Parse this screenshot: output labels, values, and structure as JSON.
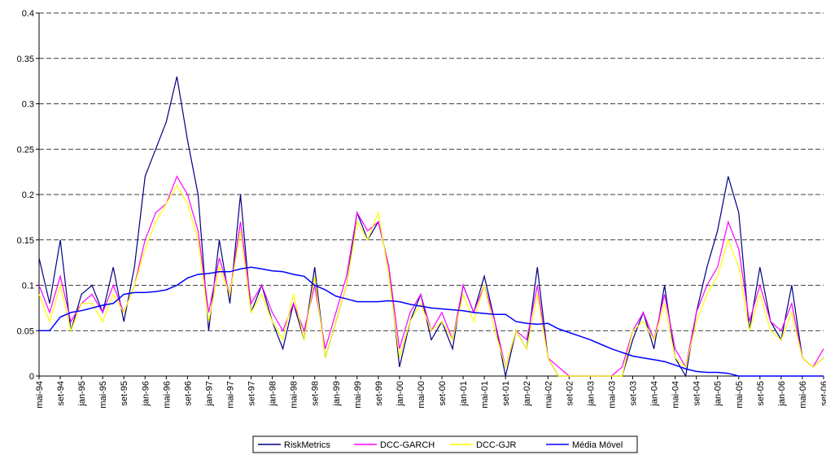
{
  "chart_data": {
    "type": "line",
    "categories": [
      "mai-94",
      null,
      "set-94",
      null,
      "jan-95",
      null,
      "mai-95",
      null,
      "set-95",
      null,
      "jan-96",
      null,
      "mai-96",
      null,
      "set-96",
      null,
      "jan-97",
      null,
      "mai-97",
      null,
      "set-97",
      null,
      "jan-98",
      null,
      "mai-98",
      null,
      "set-98",
      null,
      "jan-99",
      null,
      "mai-99",
      null,
      "set-99",
      null,
      "jan-00",
      null,
      "mai-00",
      null,
      "set-00",
      null,
      "jan-01",
      null,
      "mai-01",
      null,
      "set-01",
      null,
      "jan-02",
      null,
      "mai-02",
      null,
      "set-02",
      null,
      "jan-03",
      null,
      "mai-03",
      null,
      "set-03",
      null,
      "jan-04",
      null,
      "mai-04",
      null,
      "set-04",
      null,
      "jan-05",
      null,
      "mai-05",
      null,
      "set-05",
      null,
      "jan-06",
      null,
      "mai-06",
      null,
      "set-06"
    ],
    "series": [
      {
        "name": "RiskMetrics",
        "color": "#000080",
        "values": [
          0.13,
          0.08,
          0.15,
          0.05,
          0.09,
          0.1,
          0.07,
          0.12,
          0.06,
          0.12,
          0.22,
          0.25,
          0.28,
          0.33,
          0.26,
          0.2,
          0.05,
          0.15,
          0.08,
          0.2,
          0.07,
          0.1,
          0.06,
          0.03,
          0.08,
          0.04,
          0.12,
          0.02,
          0.06,
          0.1,
          0.18,
          0.15,
          0.17,
          0.12,
          0.01,
          0.06,
          0.09,
          0.04,
          0.06,
          0.03,
          0.1,
          0.07,
          0.11,
          0.06,
          0,
          0.05,
          0.03,
          0.12,
          0.02,
          0,
          0,
          0,
          0,
          0,
          0,
          0,
          0.04,
          0.07,
          0.03,
          0.1,
          0.02,
          0,
          0.07,
          0.12,
          0.16,
          0.22,
          0.18,
          0.05,
          0.12,
          0.06,
          0.04,
          0.1,
          0.02,
          0.01,
          0.02
        ]
      },
      {
        "name": "DCC-GARCH",
        "color": "#ff00ff",
        "values": [
          0.1,
          0.07,
          0.11,
          0.06,
          0.08,
          0.09,
          0.07,
          0.1,
          0.07,
          0.1,
          0.15,
          0.18,
          0.19,
          0.22,
          0.2,
          0.16,
          0.07,
          0.13,
          0.09,
          0.17,
          0.08,
          0.1,
          0.07,
          0.05,
          0.08,
          0.05,
          0.1,
          0.03,
          0.07,
          0.11,
          0.18,
          0.16,
          0.17,
          0.12,
          0.03,
          0.07,
          0.09,
          0.05,
          0.07,
          0.04,
          0.1,
          0.07,
          0.1,
          0.06,
          0.01,
          0.05,
          0.04,
          0.1,
          0.02,
          0.01,
          0,
          0,
          0,
          0,
          0,
          0.01,
          0.05,
          0.07,
          0.04,
          0.09,
          0.03,
          0.01,
          0.07,
          0.1,
          0.12,
          0.17,
          0.14,
          0.06,
          0.1,
          0.06,
          0.05,
          0.08,
          0.02,
          0.01,
          0.03
        ]
      },
      {
        "name": "DCC-GJR",
        "color": "#ffff00",
        "values": [
          0.09,
          0.06,
          0.1,
          0.05,
          0.08,
          0.08,
          0.06,
          0.09,
          0.07,
          0.1,
          0.14,
          0.17,
          0.19,
          0.21,
          0.19,
          0.15,
          0.06,
          0.12,
          0.09,
          0.16,
          0.07,
          0.09,
          0.06,
          0.04,
          0.09,
          0.04,
          0.11,
          0.02,
          0.06,
          0.1,
          0.17,
          0.15,
          0.18,
          0.11,
          0.02,
          0.06,
          0.08,
          0.05,
          0.06,
          0.04,
          0.09,
          0.06,
          0.1,
          0.05,
          0.01,
          0.05,
          0.03,
          0.09,
          0.02,
          0,
          0,
          0,
          0,
          0,
          0,
          0,
          0.05,
          0.06,
          0.04,
          0.08,
          0.02,
          0.01,
          0.06,
          0.09,
          0.11,
          0.15,
          0.12,
          0.05,
          0.09,
          0.05,
          0.04,
          0.07,
          0.02,
          0.01,
          0.02
        ]
      },
      {
        "name": "Média Móvel",
        "color": "#0000ff",
        "values": [
          0.05,
          0.05,
          0.065,
          0.07,
          0.072,
          0.075,
          0.078,
          0.08,
          0.09,
          0.092,
          0.092,
          0.093,
          0.095,
          0.1,
          0.108,
          0.112,
          0.113,
          0.115,
          0.115,
          0.118,
          0.12,
          0.118,
          0.116,
          0.115,
          0.112,
          0.11,
          0.1,
          0.095,
          0.088,
          0.085,
          0.082,
          0.082,
          0.082,
          0.083,
          0.082,
          0.079,
          0.077,
          0.075,
          0.074,
          0.073,
          0.072,
          0.07,
          0.069,
          0.068,
          0.068,
          0.06,
          0.058,
          0.057,
          0.058,
          0.052,
          0.048,
          0.044,
          0.04,
          0.035,
          0.03,
          0.026,
          0.022,
          0.02,
          0.018,
          0.016,
          0.012,
          0.008,
          0.005,
          0.004,
          0.004,
          0.003,
          0,
          0,
          0,
          0,
          0,
          0,
          0,
          0,
          0
        ]
      }
    ],
    "ylim": [
      0,
      0.4
    ],
    "yticks": [
      0,
      0.05,
      0.1,
      0.15,
      0.2,
      0.25,
      0.3,
      0.35,
      0.4
    ],
    "grid": true,
    "legend": "bottom"
  }
}
